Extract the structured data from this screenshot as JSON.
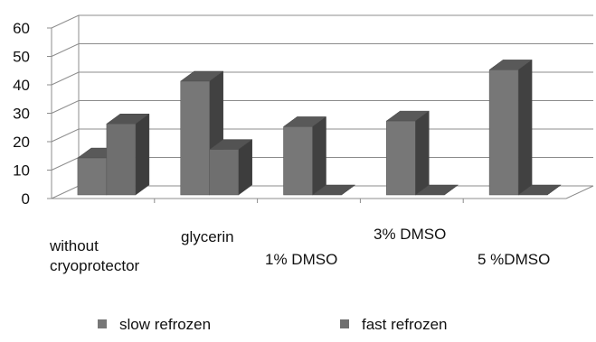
{
  "chart_data": {
    "type": "bar",
    "style": "3d-clustered-column",
    "title": "",
    "xlabel": "",
    "ylabel": "",
    "ylim": [
      0,
      60
    ],
    "yticks": [
      0,
      10,
      20,
      30,
      40,
      50,
      60
    ],
    "grid": true,
    "legend_position": "bottom",
    "categories": [
      "without\ncryoprotector",
      "glycerin",
      "1% DMSO",
      "3% DMSO",
      "5 %DMSO"
    ],
    "series": [
      {
        "name": "slow refrozen",
        "values": [
          13,
          40,
          24,
          26,
          44
        ],
        "color": "#777777"
      },
      {
        "name": "fast refrozen",
        "values": [
          25,
          16,
          0,
          0,
          0
        ],
        "color": "#6f6f6f"
      }
    ]
  }
}
